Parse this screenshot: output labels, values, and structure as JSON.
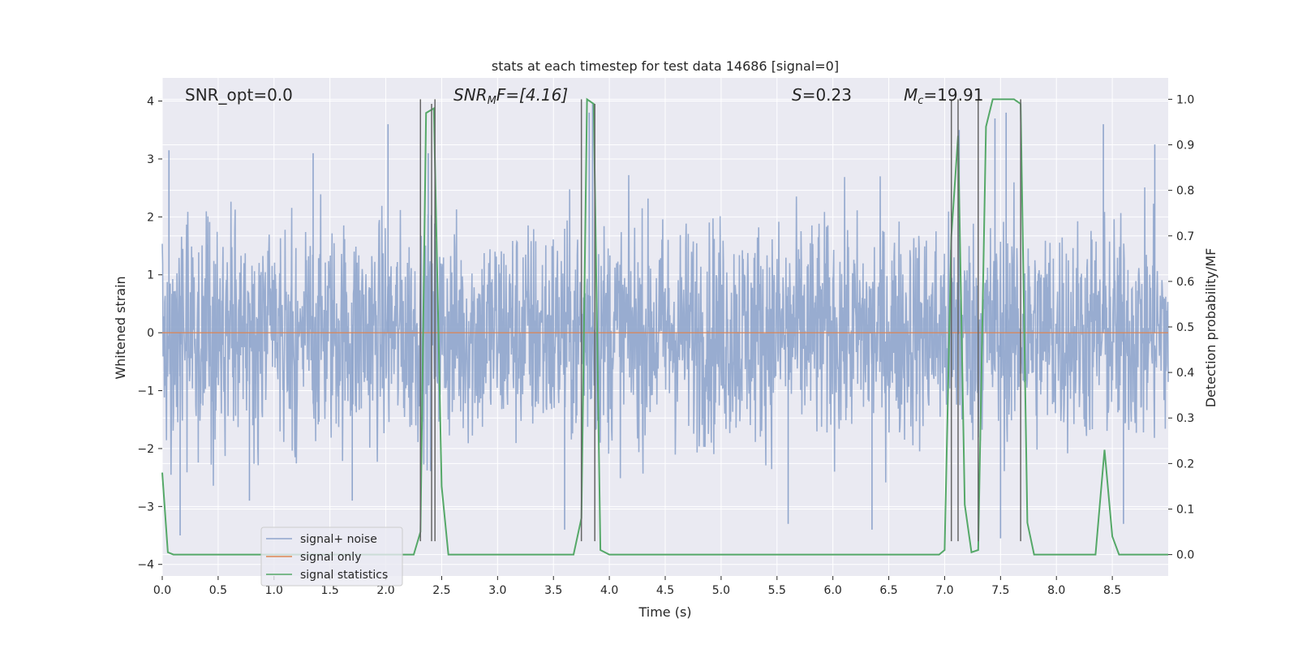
{
  "chart_data": {
    "type": "line",
    "title": "stats at each timestep for test data 14686 [signal=0]",
    "xlabel": "Time (s)",
    "ylabel_left": "Whitened strain",
    "ylabel_right": "Detection probability/MF",
    "xlim": [
      0,
      9.0
    ],
    "ylim_left": [
      -4.2,
      4.4
    ],
    "ylim_right": [
      -0.047,
      1.047
    ],
    "x_ticks": [
      0.0,
      0.5,
      1.0,
      1.5,
      2.0,
      2.5,
      3.0,
      3.5,
      4.0,
      4.5,
      5.0,
      5.5,
      6.0,
      6.5,
      7.0,
      7.5,
      8.0,
      8.5
    ],
    "x_tick_labels": [
      "0.0",
      "0.5",
      "1.0",
      "1.5",
      "2.0",
      "2.5",
      "3.0",
      "3.5",
      "4.0",
      "4.5",
      "5.0",
      "5.5",
      "6.0",
      "6.5",
      "7.0",
      "7.5",
      "8.0",
      "8.5"
    ],
    "y_ticks_left": [
      -4,
      -3,
      -2,
      -1,
      0,
      1,
      2,
      3,
      4
    ],
    "y_tick_labels_left": [
      "−4",
      "−3",
      "−2",
      "−1",
      "0",
      "1",
      "2",
      "3",
      "4"
    ],
    "y_ticks_right": [
      0.0,
      0.1,
      0.2,
      0.3,
      0.4,
      0.5,
      0.6,
      0.7,
      0.8,
      0.9,
      1.0
    ],
    "y_tick_labels_right": [
      "0.0",
      "0.1",
      "0.2",
      "0.3",
      "0.4",
      "0.5",
      "0.6",
      "0.7",
      "0.8",
      "0.9",
      "1.0"
    ],
    "grid": true,
    "legend_position": "lower-left",
    "annotations": {
      "snr_opt": "SNR_opt=0.0",
      "snr_mf_sym": "SNR",
      "snr_mf_sub": "M",
      "snr_mf_rest": "F=[4.16]",
      "s_sym": "S",
      "s_rest": "=0.23",
      "mc_sym": "M",
      "mc_sub": "c",
      "mc_rest": "=19.91"
    },
    "series": [
      {
        "name": "signal+ noise",
        "color": "#8fa5cc",
        "kind": "noise",
        "amplitude_envelope": [
          [
            0,
            3.2
          ],
          [
            9,
            3.2
          ]
        ],
        "extreme_peaks": [
          [
            0.06,
            3.15
          ],
          [
            1.35,
            3.1
          ],
          [
            2.02,
            3.6
          ],
          [
            2.38,
            3.1
          ],
          [
            3.82,
            3.8
          ],
          [
            3.85,
            3.95
          ],
          [
            7.13,
            3.5
          ],
          [
            7.45,
            3.7
          ],
          [
            7.55,
            3.8
          ],
          [
            8.42,
            3.6
          ],
          [
            8.88,
            3.25
          ],
          [
            0.16,
            -3.5
          ],
          [
            3.6,
            -3.4
          ],
          [
            5.6,
            -3.3
          ],
          [
            6.35,
            -3.4
          ],
          [
            7.5,
            -3.55
          ],
          [
            8.6,
            -3.3
          ],
          [
            0.78,
            -2.9
          ],
          [
            1.7,
            -2.9
          ]
        ]
      },
      {
        "name": "signal only",
        "color": "#dd8452",
        "kind": "line_left",
        "points": [
          [
            0,
            0
          ],
          [
            9,
            0
          ]
        ]
      },
      {
        "name": "signal statistics",
        "color": "#55a868",
        "kind": "line_right",
        "points": [
          [
            0.0,
            0.18
          ],
          [
            0.05,
            0.005
          ],
          [
            0.1,
            0.0
          ],
          [
            2.25,
            0.0
          ],
          [
            2.31,
            0.05
          ],
          [
            2.36,
            0.97
          ],
          [
            2.43,
            0.98
          ],
          [
            2.5,
            0.15
          ],
          [
            2.56,
            0.0
          ],
          [
            3.68,
            0.0
          ],
          [
            3.75,
            0.08
          ],
          [
            3.8,
            1.0
          ],
          [
            3.86,
            0.99
          ],
          [
            3.92,
            0.01
          ],
          [
            4.0,
            0.0
          ],
          [
            6.95,
            0.0
          ],
          [
            7.0,
            0.01
          ],
          [
            7.06,
            0.7
          ],
          [
            7.12,
            0.92
          ],
          [
            7.18,
            0.11
          ],
          [
            7.24,
            0.005
          ],
          [
            7.3,
            0.01
          ],
          [
            7.37,
            0.94
          ],
          [
            7.43,
            1.0
          ],
          [
            7.62,
            1.0
          ],
          [
            7.68,
            0.99
          ],
          [
            7.74,
            0.07
          ],
          [
            7.8,
            0.0
          ],
          [
            8.35,
            0.0
          ],
          [
            8.43,
            0.23
          ],
          [
            8.5,
            0.04
          ],
          [
            8.56,
            0.0
          ],
          [
            9.0,
            0.0
          ]
        ]
      }
    ],
    "vertical_markers": [
      {
        "x": 2.31,
        "y_top_right": 1.0,
        "y_bottom_left": -3.6,
        "color": "#666666"
      },
      {
        "x": 2.41,
        "y_top_right": 0.99,
        "y_bottom_left": -3.6,
        "color": "#666666"
      },
      {
        "x": 2.44,
        "y_top_right": 1.0,
        "y_bottom_left": -3.6,
        "color": "#666666"
      },
      {
        "x": 3.75,
        "y_top_right": 1.0,
        "y_bottom_left": -3.6,
        "color": "#666666"
      },
      {
        "x": 3.87,
        "y_top_right": 0.99,
        "y_bottom_left": -3.6,
        "color": "#666666"
      },
      {
        "x": 7.06,
        "y_top_right": 1.0,
        "y_bottom_left": -3.6,
        "color": "#666666"
      },
      {
        "x": 7.12,
        "y_top_right": 1.0,
        "y_bottom_left": -3.6,
        "color": "#666666"
      },
      {
        "x": 7.3,
        "y_top_right": 1.0,
        "y_bottom_left": -3.6,
        "color": "#666666"
      },
      {
        "x": 7.68,
        "y_top_right": 1.0,
        "y_bottom_left": -3.6,
        "color": "#666666"
      }
    ],
    "colors": {
      "plot_background": "#eaeaf2",
      "grid": "#ffffff",
      "text": "#262626"
    }
  }
}
